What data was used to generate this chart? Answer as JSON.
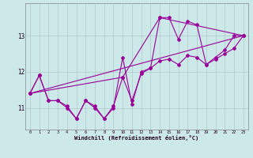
{
  "xlabel": "Windchill (Refroidissement éolien,°C)",
  "bg_color": "#cce8e8",
  "grid_color": "#b0c8c8",
  "line_color": "#990099",
  "series1": [
    [
      0,
      11.4
    ],
    [
      1,
      11.9
    ],
    [
      2,
      11.2
    ],
    [
      3,
      11.2
    ],
    [
      4,
      11.0
    ],
    [
      5,
      10.7
    ],
    [
      6,
      11.2
    ],
    [
      7,
      11.0
    ],
    [
      8,
      10.7
    ],
    [
      9,
      11.0
    ],
    [
      10,
      12.4
    ],
    [
      11,
      11.1
    ],
    [
      12,
      12.0
    ],
    [
      13,
      12.1
    ],
    [
      14,
      13.5
    ],
    [
      15,
      13.5
    ],
    [
      16,
      12.9
    ],
    [
      17,
      13.4
    ],
    [
      18,
      13.3
    ],
    [
      19,
      12.2
    ],
    [
      20,
      12.4
    ],
    [
      21,
      12.6
    ],
    [
      22,
      13.0
    ],
    [
      23,
      13.0
    ]
  ],
  "series2": [
    [
      0,
      11.4
    ],
    [
      23,
      13.0
    ]
  ],
  "series3": [
    [
      0,
      11.4
    ],
    [
      1,
      11.9
    ],
    [
      2,
      11.2
    ],
    [
      3,
      11.2
    ],
    [
      4,
      11.05
    ],
    [
      5,
      10.7
    ],
    [
      6,
      11.2
    ],
    [
      7,
      11.05
    ],
    [
      8,
      10.7
    ],
    [
      9,
      11.05
    ],
    [
      10,
      11.85
    ],
    [
      11,
      11.2
    ],
    [
      12,
      11.95
    ],
    [
      13,
      12.1
    ],
    [
      14,
      12.3
    ],
    [
      15,
      12.35
    ],
    [
      16,
      12.2
    ],
    [
      17,
      12.45
    ],
    [
      18,
      12.4
    ],
    [
      19,
      12.2
    ],
    [
      20,
      12.35
    ],
    [
      21,
      12.5
    ],
    [
      22,
      12.65
    ],
    [
      23,
      13.0
    ]
  ],
  "series4": [
    [
      0,
      11.4
    ],
    [
      10,
      11.85
    ],
    [
      14,
      13.5
    ],
    [
      23,
      13.0
    ]
  ],
  "ylim": [
    10.4,
    13.9
  ],
  "xlim": [
    -0.5,
    23.5
  ],
  "yticks": [
    11,
    12,
    13
  ],
  "xticks": [
    0,
    1,
    2,
    3,
    4,
    5,
    6,
    7,
    8,
    9,
    10,
    11,
    12,
    13,
    14,
    15,
    16,
    17,
    18,
    19,
    20,
    21,
    22,
    23
  ]
}
